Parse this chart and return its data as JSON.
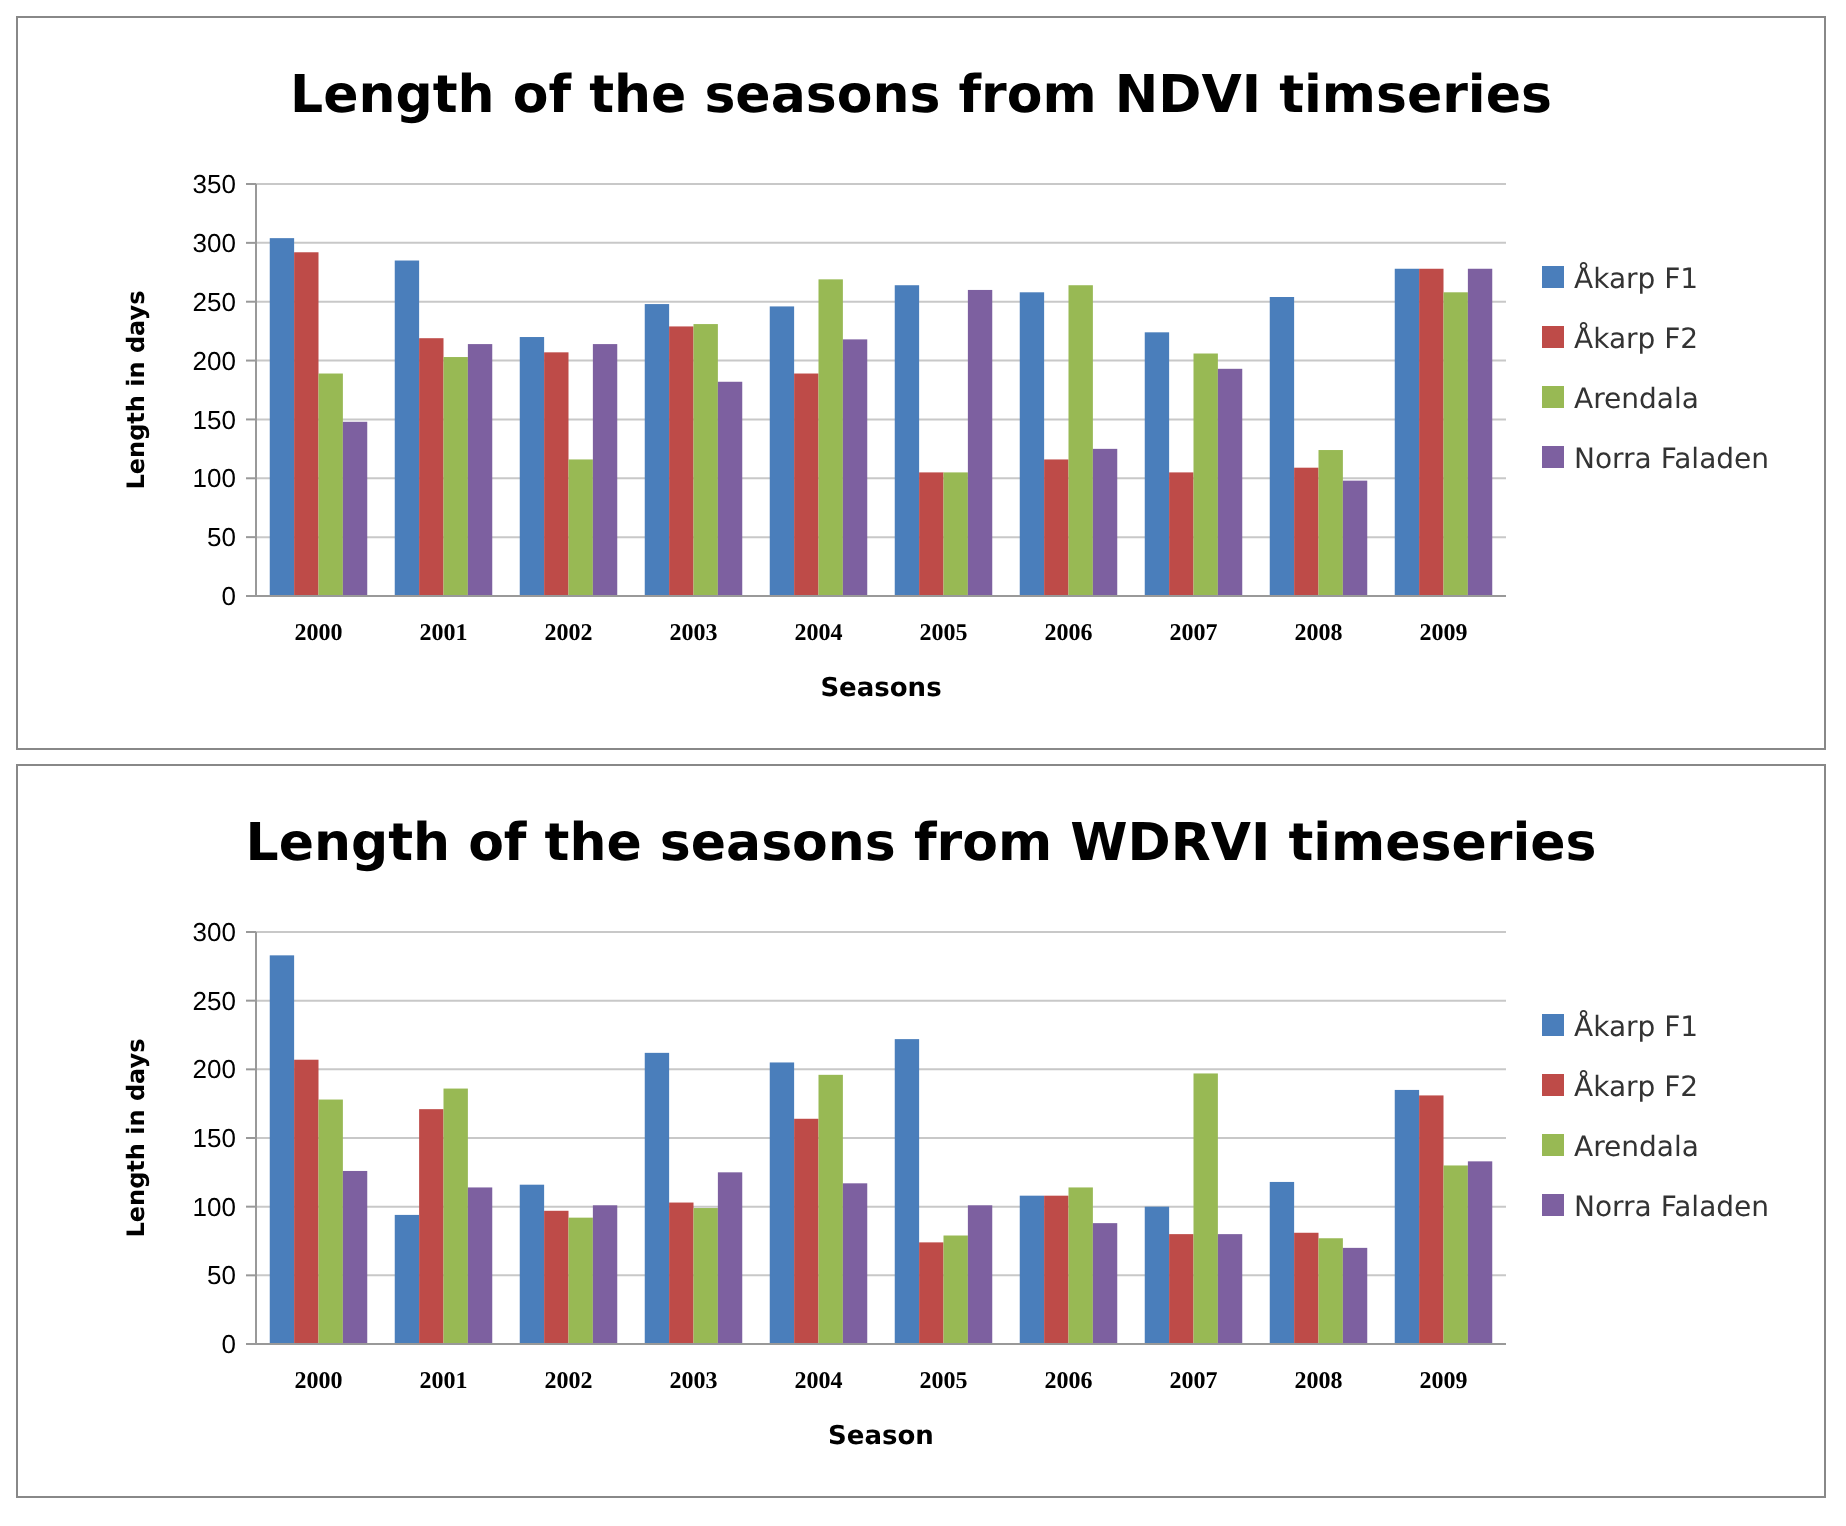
{
  "chart_data": [
    {
      "type": "bar",
      "title": "Length of the seasons from NDVI timseries",
      "xlabel": "Seasons",
      "ylabel": "Length in days",
      "categories": [
        "2000",
        "2001",
        "2002",
        "2003",
        "2004",
        "2005",
        "2006",
        "2007",
        "2008",
        "2009"
      ],
      "series": [
        {
          "name": "Åkarp F1",
          "color": "#4a7ebb",
          "values": [
            304,
            285,
            220,
            248,
            246,
            264,
            258,
            224,
            254,
            278
          ]
        },
        {
          "name": "Åkarp F2",
          "color": "#be4b48",
          "values": [
            292,
            219,
            207,
            229,
            189,
            105,
            116,
            105,
            109,
            278
          ]
        },
        {
          "name": "Arendala",
          "color": "#98b954",
          "values": [
            189,
            203,
            116,
            231,
            269,
            105,
            264,
            206,
            124,
            258
          ]
        },
        {
          "name": "Norra Faladen",
          "color": "#7d60a0",
          "values": [
            148,
            214,
            214,
            182,
            218,
            260,
            125,
            193,
            98,
            278
          ]
        }
      ],
      "ylim": [
        0,
        350
      ],
      "yticks": [
        0,
        50,
        100,
        150,
        200,
        250,
        300,
        350
      ],
      "grid": "y",
      "legend": "right"
    },
    {
      "type": "bar",
      "title": "Length of the seasons from WDRVI timeseries",
      "xlabel": "Season",
      "ylabel": "Length in days",
      "categories": [
        "2000",
        "2001",
        "2002",
        "2003",
        "2004",
        "2005",
        "2006",
        "2007",
        "2008",
        "2009"
      ],
      "series": [
        {
          "name": "Åkarp F1",
          "color": "#4a7ebb",
          "values": [
            283,
            94,
            116,
            212,
            205,
            222,
            108,
            100,
            118,
            185
          ]
        },
        {
          "name": "Åkarp F2",
          "color": "#be4b48",
          "values": [
            207,
            171,
            97,
            103,
            164,
            74,
            108,
            80,
            81,
            181
          ]
        },
        {
          "name": "Arendala",
          "color": "#98b954",
          "values": [
            178,
            186,
            92,
            99,
            196,
            79,
            114,
            197,
            77,
            130
          ]
        },
        {
          "name": "Norra Faladen",
          "color": "#7d60a0",
          "values": [
            126,
            114,
            101,
            125,
            117,
            101,
            88,
            80,
            70,
            133
          ]
        }
      ],
      "ylim": [
        0,
        300
      ],
      "yticks": [
        0,
        50,
        100,
        150,
        200,
        250,
        300
      ],
      "grid": "y",
      "legend": "right"
    }
  ]
}
